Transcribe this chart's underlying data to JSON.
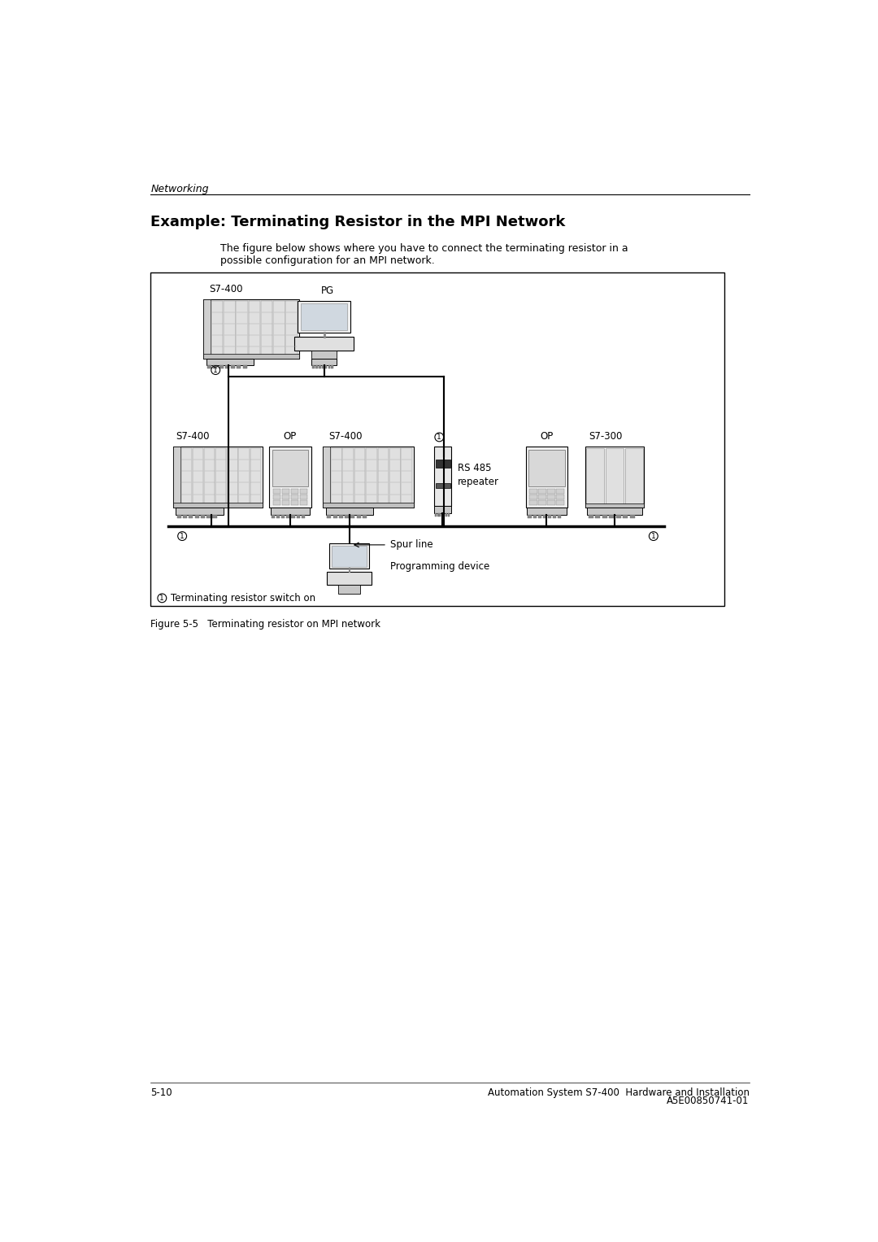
{
  "page_title": "Networking",
  "section_title": "Example: Terminating Resistor in the MPI Network",
  "body_text1": "The figure below shows where you have to connect the terminating resistor in a",
  "body_text2": "possible configuration for an MPI network.",
  "figure_caption": "Figure 5-5   Terminating resistor on MPI network",
  "footer_left": "5-10",
  "footer_right_line1": "Automation System S7-400  Hardware and Installation",
  "footer_right_line2": "A5E00850741-01",
  "legend_text": "Terminating resistor switch on",
  "bg": "#ffffff",
  "border": "#000000",
  "gray_light": "#e8e8e8",
  "gray_mid": "#cccccc",
  "gray_dark": "#999999"
}
